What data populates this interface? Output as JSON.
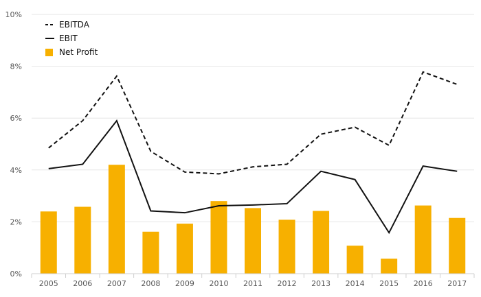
{
  "chart_data": {
    "type": "bar",
    "title": "",
    "xlabel": "",
    "ylabel": "",
    "categories": [
      "2005",
      "2006",
      "2007",
      "2008",
      "2009",
      "2010",
      "2011",
      "2012",
      "2013",
      "2014",
      "2015",
      "2016",
      "2017"
    ],
    "y_ticks": [
      "0%",
      "2%",
      "4%",
      "6%",
      "8%",
      "10%"
    ],
    "ylim": [
      0,
      10
    ],
    "grid": true,
    "legend_position": "top-left",
    "series": [
      {
        "name": "EBITDA",
        "kind": "line",
        "style": "dashed",
        "color": "#111111",
        "values": [
          4.85,
          5.9,
          7.62,
          4.72,
          3.92,
          3.85,
          4.12,
          4.22,
          5.38,
          5.65,
          4.95,
          7.78,
          7.3
        ]
      },
      {
        "name": "EBIT",
        "kind": "line",
        "style": "solid",
        "color": "#111111",
        "values": [
          4.05,
          4.22,
          5.9,
          2.42,
          2.35,
          2.62,
          2.65,
          2.7,
          3.95,
          3.63,
          1.58,
          4.15,
          3.95
        ]
      },
      {
        "name": "Net Profit",
        "kind": "bar",
        "color": "#f7b000",
        "values": [
          2.4,
          2.58,
          4.2,
          1.62,
          1.93,
          2.8,
          2.53,
          2.08,
          2.42,
          1.08,
          0.58,
          2.63,
          2.15
        ]
      }
    ]
  }
}
